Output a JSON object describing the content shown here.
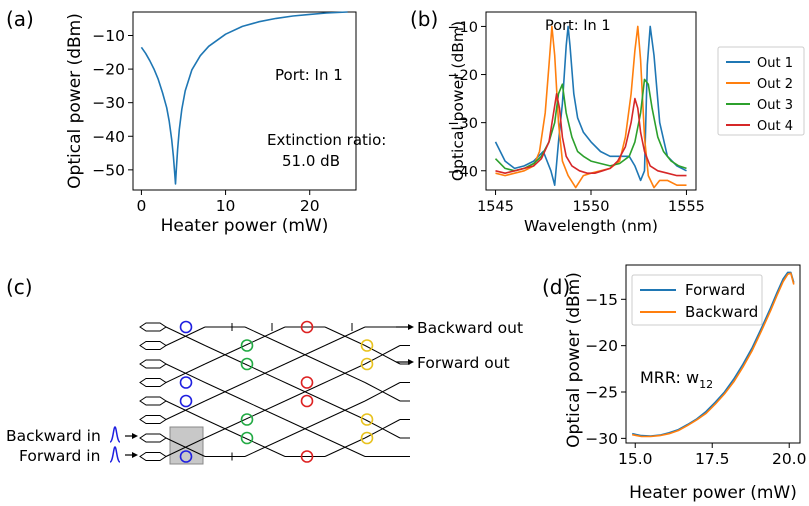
{
  "panels": {
    "a": "(a)",
    "b": "(b)",
    "c": "(c)",
    "d": "(d)"
  },
  "chart_data": [
    {
      "type": "line",
      "panel": "(a)",
      "xlabel": "Heater power (mW)",
      "ylabel": "Optical power (dBm)",
      "xlim": [
        -1,
        25.5
      ],
      "ylim": [
        -56,
        -3
      ],
      "xticks": [
        0,
        10,
        20
      ],
      "yticks": [
        -50,
        -40,
        -30,
        -20,
        -10
      ],
      "annotations": [
        "Port: In 1",
        "Extinction ratio:",
        "51.0 dB"
      ],
      "series": [
        {
          "color": "#1f77b4",
          "x": [
            0,
            0.5,
            1,
            1.5,
            2,
            2.5,
            3,
            3.3,
            3.6,
            3.8,
            3.95,
            4.05,
            4.15,
            4.3,
            4.5,
            4.8,
            5.2,
            6,
            7,
            8,
            10,
            12,
            14,
            16,
            18,
            20,
            22,
            24.5
          ],
          "values": [
            -13.5,
            -15.3,
            -17.5,
            -20,
            -23,
            -27,
            -31.5,
            -35.5,
            -41,
            -46,
            -51,
            -54.2,
            -50,
            -44,
            -38,
            -32,
            -26.5,
            -20.2,
            -16,
            -13.2,
            -9.6,
            -7.3,
            -5.9,
            -4.9,
            -4.2,
            -3.7,
            -3.3,
            -3
          ]
        }
      ]
    },
    {
      "type": "line",
      "panel": "(b)",
      "xlabel": "Wavelength (nm)",
      "ylabel": "Optical power (dBm)",
      "xlim": [
        1544.5,
        1555.5
      ],
      "ylim": [
        -44,
        -7
      ],
      "xticks": [
        1545,
        1550,
        1555
      ],
      "yticks": [
        -40,
        -30,
        -20,
        -10
      ],
      "annotations": [
        "Port: In 1"
      ],
      "legend": "right",
      "series": [
        {
          "name": "Out 1",
          "color": "#1f77b4",
          "x": [
            1545,
            1545.5,
            1546,
            1546.5,
            1547,
            1547.5,
            1547.9,
            1548.1,
            1548.3,
            1548.5,
            1548.7,
            1548.8,
            1548.9,
            1549.1,
            1549.3,
            1549.6,
            1550,
            1550.5,
            1551,
            1551.5,
            1552,
            1552.3,
            1552.6,
            1552.8,
            1552.95,
            1553.1,
            1553.3,
            1553.6,
            1554,
            1554.5,
            1555
          ],
          "values": [
            -34,
            -38,
            -39.5,
            -39,
            -38,
            -36,
            -40,
            -43,
            -34,
            -26,
            -14,
            -10,
            -14,
            -24,
            -29,
            -32,
            -34,
            -36,
            -37,
            -37,
            -37,
            -39,
            -42,
            -40,
            -18,
            -10,
            -16,
            -30,
            -37,
            -39,
            -40
          ]
        },
        {
          "name": "Out 2",
          "color": "#ff7f0e",
          "x": [
            1545,
            1545.5,
            1546,
            1546.5,
            1547,
            1547.3,
            1547.6,
            1547.8,
            1547.95,
            1548.1,
            1548.3,
            1548.5,
            1548.8,
            1549.2,
            1549.6,
            1550,
            1550.5,
            1551,
            1551.5,
            1551.8,
            1552.1,
            1552.3,
            1552.45,
            1552.6,
            1552.8,
            1553,
            1553.3,
            1553.6,
            1554,
            1554.5,
            1555
          ],
          "values": [
            -40.5,
            -41,
            -40.5,
            -40,
            -39,
            -36,
            -28,
            -18,
            -10,
            -16,
            -30,
            -38,
            -41,
            -43.5,
            -41,
            -40.5,
            -40,
            -39.5,
            -38,
            -33,
            -24,
            -15,
            -10,
            -17,
            -33,
            -41,
            -43.5,
            -42,
            -42,
            -43,
            -43
          ]
        },
        {
          "name": "Out 3",
          "color": "#2ca02c",
          "x": [
            1545,
            1545.5,
            1546,
            1546.5,
            1547,
            1547.4,
            1547.8,
            1548.1,
            1548.3,
            1548.5,
            1548.7,
            1549,
            1549.3,
            1549.6,
            1550,
            1550.5,
            1551,
            1551.5,
            1552,
            1552.3,
            1552.6,
            1552.8,
            1553,
            1553.2,
            1553.5,
            1553.8,
            1554.2,
            1554.6,
            1555
          ],
          "values": [
            -37.5,
            -39.5,
            -40,
            -39.5,
            -38.5,
            -37,
            -34,
            -30,
            -24,
            -22,
            -28,
            -33,
            -36,
            -37,
            -38,
            -38.5,
            -39,
            -38.5,
            -37,
            -34,
            -28,
            -21,
            -22,
            -27,
            -33,
            -36,
            -38,
            -39,
            -39.5
          ]
        },
        {
          "name": "Out 4",
          "color": "#d62728",
          "x": [
            1545,
            1545.5,
            1546,
            1546.5,
            1547,
            1547.4,
            1547.8,
            1548,
            1548.2,
            1548.35,
            1548.5,
            1548.7,
            1549,
            1549.4,
            1549.8,
            1550.2,
            1550.6,
            1551,
            1551.4,
            1551.8,
            1552.1,
            1552.3,
            1552.45,
            1552.6,
            1552.8,
            1553.1,
            1553.5,
            1554,
            1554.5,
            1555
          ],
          "values": [
            -40,
            -40.5,
            -40,
            -39.5,
            -39,
            -37.5,
            -34,
            -29,
            -24,
            -27,
            -33,
            -37,
            -39,
            -40,
            -40.5,
            -40.5,
            -40,
            -39.5,
            -38,
            -35,
            -30,
            -25,
            -27,
            -32,
            -36,
            -39,
            -40,
            -40.5,
            -41,
            -41
          ]
        }
      ]
    },
    {
      "type": "line",
      "panel": "(d)",
      "xlabel": "Heater power (mW)",
      "ylabel": "Optical power (dBm)",
      "xlim": [
        14.7,
        20.35
      ],
      "ylim": [
        -30.5,
        -11.3
      ],
      "xticks": [
        15.0,
        17.5,
        20.0
      ],
      "xtick_labels": [
        "15.0",
        "17.5",
        "20.0"
      ],
      "yticks": [
        -30,
        -25,
        -20,
        -15
      ],
      "annotations": [
        "MRR: w",
        "12"
      ],
      "legend": "top-left",
      "series": [
        {
          "name": "Forward",
          "color": "#1f77b4",
          "x": [
            14.9,
            15.2,
            15.5,
            15.8,
            16.1,
            16.4,
            16.7,
            17,
            17.3,
            17.6,
            17.9,
            18.2,
            18.5,
            18.8,
            19.1,
            19.4,
            19.6,
            19.8,
            19.95,
            20.05,
            20.15
          ],
          "values": [
            -29.5,
            -29.7,
            -29.75,
            -29.65,
            -29.4,
            -29.05,
            -28.5,
            -27.9,
            -27.1,
            -26.1,
            -25,
            -23.6,
            -22,
            -20.2,
            -18.1,
            -15.9,
            -14.3,
            -12.8,
            -12.1,
            -12.1,
            -13.2
          ]
        },
        {
          "name": "Backward",
          "color": "#ff7f0e",
          "x": [
            14.9,
            15.2,
            15.5,
            15.8,
            16.1,
            16.4,
            16.7,
            17,
            17.3,
            17.6,
            17.9,
            18.2,
            18.5,
            18.8,
            19.1,
            19.4,
            19.6,
            19.8,
            19.95,
            20.05,
            20.15
          ],
          "values": [
            -29.6,
            -29.8,
            -29.8,
            -29.7,
            -29.5,
            -29.15,
            -28.6,
            -28.0,
            -27.3,
            -26.3,
            -25.2,
            -23.9,
            -22.3,
            -20.5,
            -18.4,
            -16.2,
            -14.6,
            -13.1,
            -12.3,
            -12.2,
            -13.4
          ]
        }
      ]
    }
  ],
  "diagram": {
    "labels": {
      "backward_out": "Backward out",
      "forward_out": "Forward out",
      "backward_in": "Backward in",
      "forward_in": "Forward in"
    },
    "ring_colors": {
      "blue": "#1f1fe0",
      "green": "#22aa44",
      "red": "#dd2222",
      "yellow": "#e8c21e"
    },
    "highlight_color": "#c8c8c8",
    "pulse_color": "#1f1fe0"
  }
}
